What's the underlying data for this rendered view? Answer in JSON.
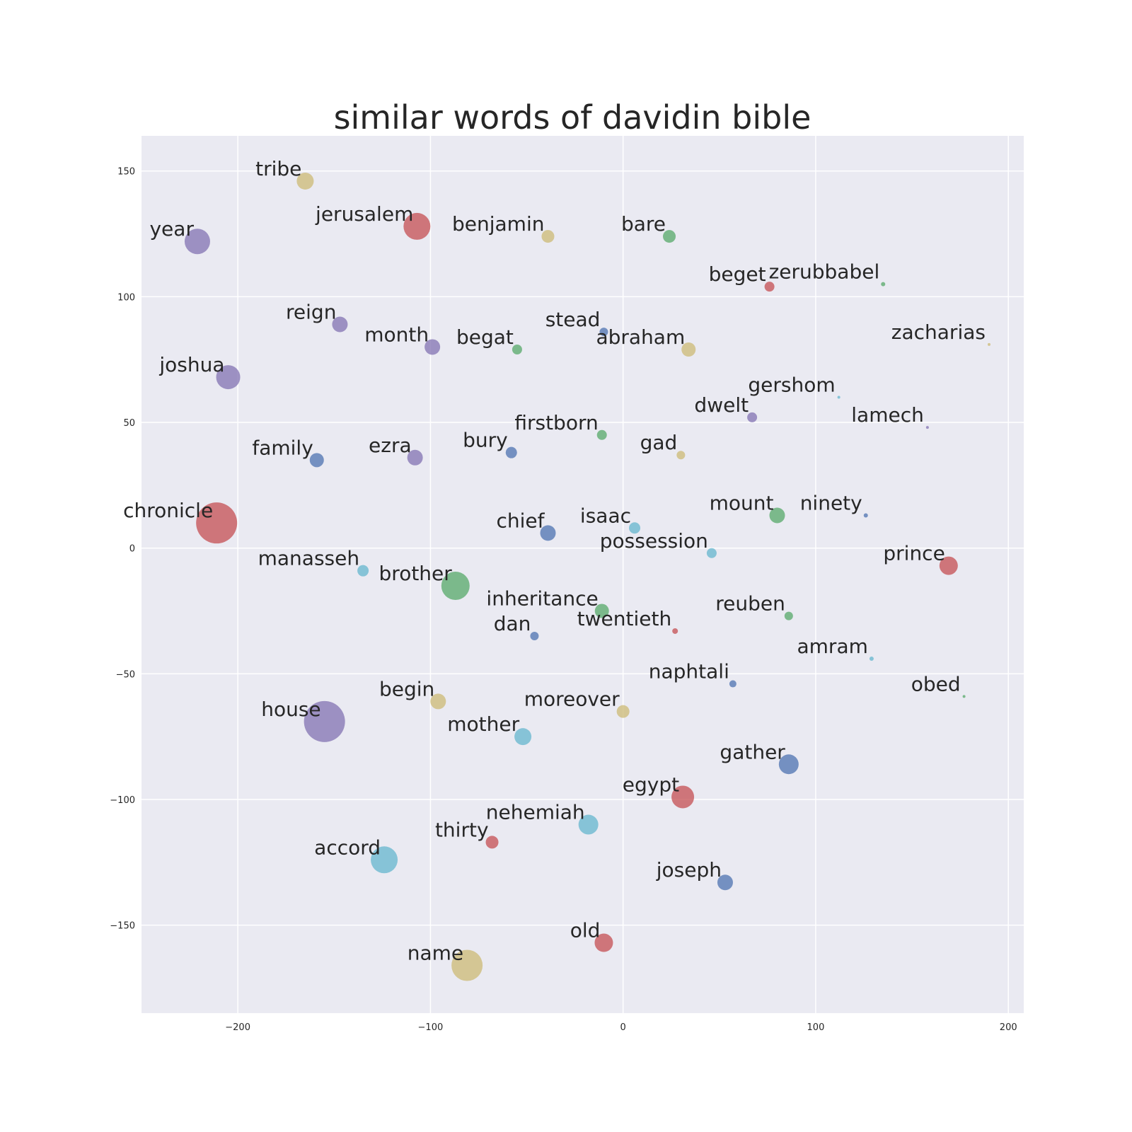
{
  "chart_data": {
    "type": "scatter",
    "title": "similar words of davidin bible",
    "xlabel": "",
    "ylabel": "",
    "xlim": [
      -250,
      208
    ],
    "ylim": [
      -185,
      164
    ],
    "xticks": [
      -200,
      -100,
      0,
      100,
      200
    ],
    "yticks": [
      150,
      100,
      50,
      0,
      -50,
      -100,
      -150
    ],
    "xtick_labels": [
      "−200",
      "−100",
      "0",
      "100",
      "200"
    ],
    "ytick_labels": [
      "150",
      "100",
      "50",
      "0",
      "−50",
      "−100",
      "−150"
    ],
    "grid": true,
    "colors": {
      "background": "#eaeaf2",
      "grid": "#ffffff",
      "blue": "#4c72b0",
      "green": "#55a868",
      "red": "#c44e52",
      "purple": "#8172b2",
      "yellow": "#ccb974",
      "cyan": "#64b5cd"
    },
    "points": [
      {
        "label": "tribe",
        "x": -165,
        "y": 146,
        "size": 12,
        "color": "yellow"
      },
      {
        "label": "jerusalem",
        "x": -107,
        "y": 128,
        "size": 19,
        "color": "red"
      },
      {
        "label": "year",
        "x": -221,
        "y": 122,
        "size": 18,
        "color": "purple"
      },
      {
        "label": "benjamin",
        "x": -39,
        "y": 124,
        "size": 9,
        "color": "yellow"
      },
      {
        "label": "bare",
        "x": 24,
        "y": 124,
        "size": 9,
        "color": "green"
      },
      {
        "label": "beget",
        "x": 76,
        "y": 104,
        "size": 7,
        "color": "red"
      },
      {
        "label": "zerubbabel",
        "x": 135,
        "y": 105,
        "size": 3,
        "color": "green"
      },
      {
        "label": "reign",
        "x": -147,
        "y": 89,
        "size": 11,
        "color": "purple"
      },
      {
        "label": "month",
        "x": -99,
        "y": 80,
        "size": 11,
        "color": "purple"
      },
      {
        "label": "begat",
        "x": -55,
        "y": 79,
        "size": 7,
        "color": "green"
      },
      {
        "label": "stead",
        "x": -10,
        "y": 86,
        "size": 6,
        "color": "blue"
      },
      {
        "label": "abraham",
        "x": 34,
        "y": 79,
        "size": 10,
        "color": "yellow"
      },
      {
        "label": "zacharias",
        "x": 190,
        "y": 81,
        "size": 2,
        "color": "yellow"
      },
      {
        "label": "joshua",
        "x": -205,
        "y": 68,
        "size": 17,
        "color": "purple"
      },
      {
        "label": "gershom",
        "x": 112,
        "y": 60,
        "size": 2,
        "color": "cyan"
      },
      {
        "label": "dwelt",
        "x": 67,
        "y": 52,
        "size": 7,
        "color": "purple"
      },
      {
        "label": "lamech",
        "x": 158,
        "y": 48,
        "size": 2,
        "color": "purple"
      },
      {
        "label": "firstborn",
        "x": -11,
        "y": 45,
        "size": 7,
        "color": "green"
      },
      {
        "label": "family",
        "x": -159,
        "y": 35,
        "size": 10,
        "color": "blue"
      },
      {
        "label": "ezra",
        "x": -108,
        "y": 36,
        "size": 11,
        "color": "purple"
      },
      {
        "label": "bury",
        "x": -58,
        "y": 38,
        "size": 8,
        "color": "blue"
      },
      {
        "label": "gad",
        "x": 30,
        "y": 37,
        "size": 6,
        "color": "yellow"
      },
      {
        "label": "chronicle",
        "x": -211,
        "y": 10,
        "size": 29,
        "color": "red"
      },
      {
        "label": "chief",
        "x": -39,
        "y": 6,
        "size": 11,
        "color": "blue"
      },
      {
        "label": "isaac",
        "x": 6,
        "y": 8,
        "size": 8,
        "color": "cyan"
      },
      {
        "label": "mount",
        "x": 80,
        "y": 13,
        "size": 11,
        "color": "green"
      },
      {
        "label": "ninety",
        "x": 126,
        "y": 13,
        "size": 3,
        "color": "blue"
      },
      {
        "label": "possession",
        "x": 46,
        "y": -2,
        "size": 7,
        "color": "cyan"
      },
      {
        "label": "prince",
        "x": 169,
        "y": -7,
        "size": 13,
        "color": "red"
      },
      {
        "label": "manasseh",
        "x": -135,
        "y": -9,
        "size": 8,
        "color": "cyan"
      },
      {
        "label": "brother",
        "x": -87,
        "y": -15,
        "size": 20,
        "color": "green"
      },
      {
        "label": "inheritance",
        "x": -11,
        "y": -25,
        "size": 10,
        "color": "green"
      },
      {
        "label": "reuben",
        "x": 86,
        "y": -27,
        "size": 6,
        "color": "green"
      },
      {
        "label": "dan",
        "x": -46,
        "y": -35,
        "size": 6,
        "color": "blue"
      },
      {
        "label": "twentieth",
        "x": 27,
        "y": -33,
        "size": 4,
        "color": "red"
      },
      {
        "label": "amram",
        "x": 129,
        "y": -44,
        "size": 3,
        "color": "cyan"
      },
      {
        "label": "naphtali",
        "x": 57,
        "y": -54,
        "size": 5,
        "color": "blue"
      },
      {
        "label": "obed",
        "x": 177,
        "y": -59,
        "size": 2,
        "color": "green"
      },
      {
        "label": "begin",
        "x": -96,
        "y": -61,
        "size": 11,
        "color": "yellow"
      },
      {
        "label": "moreover",
        "x": 0,
        "y": -65,
        "size": 9,
        "color": "yellow"
      },
      {
        "label": "house",
        "x": -155,
        "y": -69,
        "size": 29,
        "color": "purple"
      },
      {
        "label": "mother",
        "x": -52,
        "y": -75,
        "size": 12,
        "color": "cyan"
      },
      {
        "label": "gather",
        "x": 86,
        "y": -86,
        "size": 14,
        "color": "blue"
      },
      {
        "label": "egypt",
        "x": 31,
        "y": -99,
        "size": 16,
        "color": "red"
      },
      {
        "label": "nehemiah",
        "x": -18,
        "y": -110,
        "size": 14,
        "color": "cyan"
      },
      {
        "label": "thirty",
        "x": -68,
        "y": -117,
        "size": 9,
        "color": "red"
      },
      {
        "label": "accord",
        "x": -124,
        "y": -124,
        "size": 19,
        "color": "cyan"
      },
      {
        "label": "joseph",
        "x": 53,
        "y": -133,
        "size": 11,
        "color": "blue"
      },
      {
        "label": "old",
        "x": -10,
        "y": -157,
        "size": 13,
        "color": "red"
      },
      {
        "label": "name",
        "x": -81,
        "y": -166,
        "size": 22,
        "color": "yellow"
      }
    ]
  }
}
